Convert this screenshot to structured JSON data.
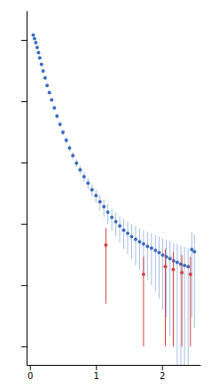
{
  "chart_data": {
    "type": "scatter",
    "log": "y",
    "grid": false,
    "tick_labels": "x",
    "xlim": [
      -0.05,
      2.58
    ],
    "xticks": [
      0,
      1,
      2
    ],
    "ylim": [
      50,
      30000000.0
    ],
    "yticks": [
      100,
      1000,
      10000,
      100000,
      1000000,
      10000000
    ],
    "series": [
      {
        "color": "#3a6bbf",
        "x": [
          0.05,
          0.07,
          0.09,
          0.11,
          0.13,
          0.15,
          0.175,
          0.2,
          0.23,
          0.26,
          0.295,
          0.33,
          0.37,
          0.41,
          0.455,
          0.5,
          0.55,
          0.6,
          0.65,
          0.705,
          0.76,
          0.82,
          0.88,
          0.94,
          1.0,
          1.06,
          1.12,
          1.18,
          1.24,
          1.3,
          1.36,
          1.42,
          1.48,
          1.54,
          1.6,
          1.66,
          1.72,
          1.78,
          1.84,
          1.9,
          1.955,
          2.01,
          2.065,
          2.12,
          2.175,
          2.23,
          2.285,
          2.34,
          2.395,
          2.45,
          2.49
        ],
        "values": [
          12000000.0,
          10500000.0,
          9000000.0,
          7500000.0,
          6200000.0,
          5100000.0,
          4000000.0,
          3100000.0,
          2400000.0,
          1800000.0,
          1380000.0,
          1050000.0,
          780000.0,
          570000.0,
          420000.0,
          310000.0,
          230000.0,
          172000.0,
          130000.0,
          98000.0,
          76000.0,
          59000.0,
          46000.0,
          36000.0,
          29000.0,
          23000.0,
          19000.0,
          15500.0,
          12800.0,
          10800.0,
          9200.0,
          7900.0,
          7000.0,
          6200.0,
          5600.0,
          5100.0,
          4700.0,
          4300.0,
          4000.0,
          3700.0,
          3400.0,
          3100.0,
          2900.0,
          2700.0,
          2500.0,
          2350.0,
          2200.0,
          2100.0,
          2000.0,
          3800.0,
          3500.0
        ],
        "errors": [
          400000.0,
          350000.0,
          300000.0,
          250000.0,
          220000.0,
          200000.0,
          180000.0,
          150000.0,
          130000.0,
          110000.0,
          90000.0,
          70000.0,
          55000.0,
          45000.0,
          35000.0,
          30000.0,
          25000.0,
          20000.0,
          17000.0,
          14000.0,
          12000.0,
          11000.0,
          9000.0,
          8000.0,
          7000.0,
          6500.0,
          6000.0,
          5500.0,
          5000.0,
          4500.0,
          4200.0,
          4000.0,
          3800.0,
          3600.0,
          3500.0,
          3300.0,
          3200.0,
          3100.0,
          3000.0,
          2900.0,
          2800.0,
          2700.0,
          2600.0,
          2550.0,
          2400.0,
          2300.0,
          2200.0,
          2100.0,
          2000.0,
          3500.0,
          3300.0
        ]
      },
      {
        "color": "#d94040",
        "x": [
          1.15,
          1.72,
          2.05,
          2.17,
          2.3,
          2.43
        ],
        "values": [
          4500.0,
          1500.0,
          2000.0,
          1800.0,
          1600.0,
          1500.0
        ],
        "errors": [
          4000.0,
          1400.0,
          1900.0,
          1700.0,
          1500.0,
          1400.0
        ]
      }
    ]
  }
}
